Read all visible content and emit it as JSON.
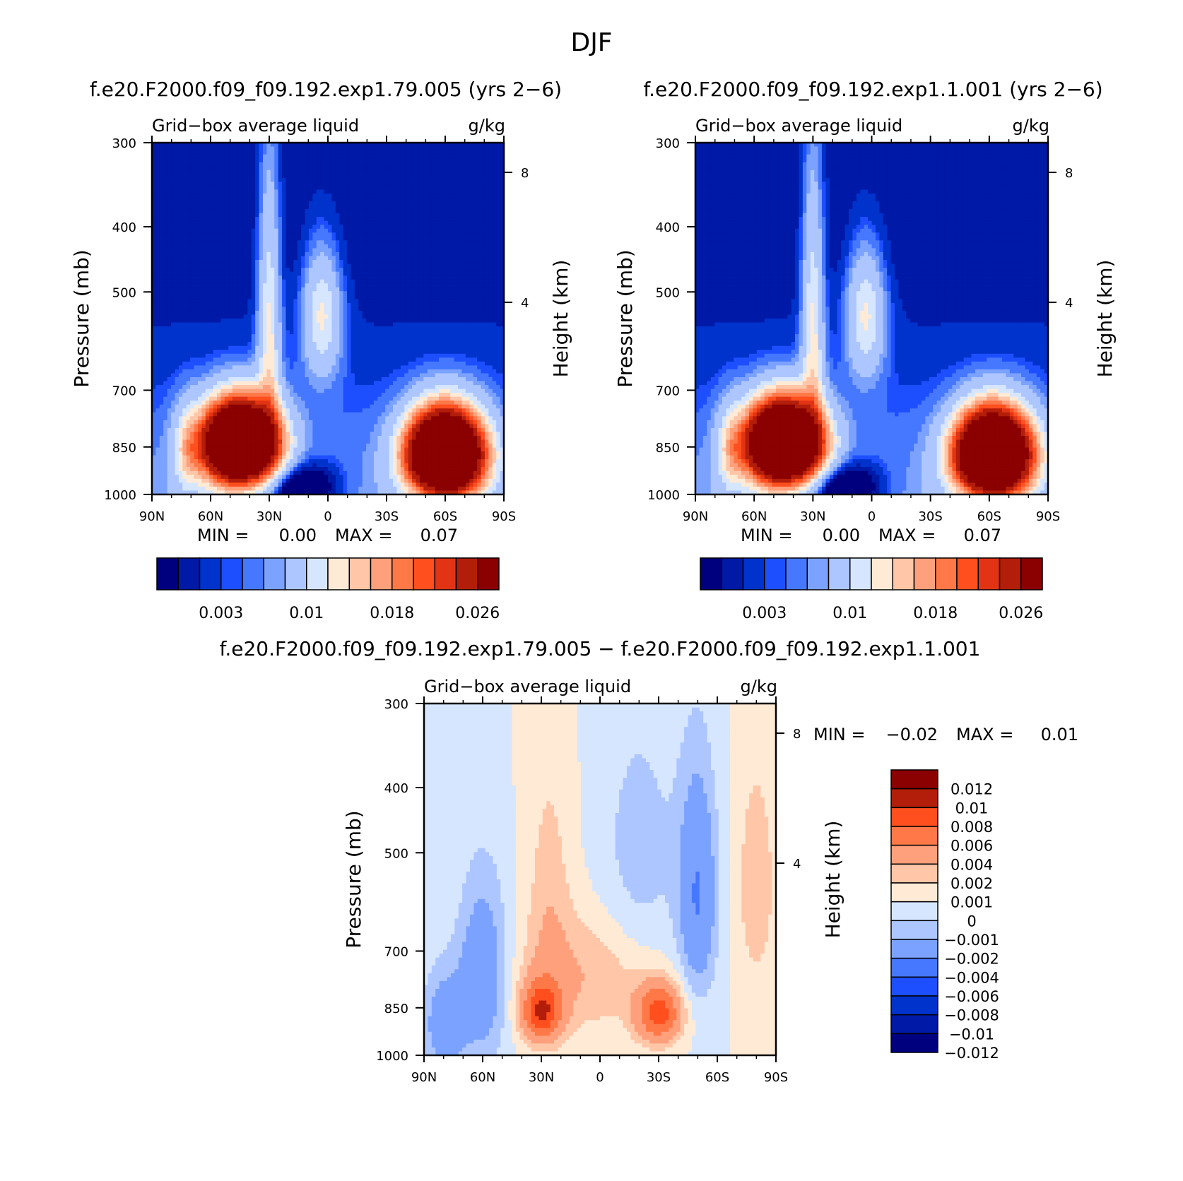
{
  "figure_title": "DJF",
  "colors": {
    "abs_levels": [
      "#00007f",
      "#0019a6",
      "#0032cc",
      "#1e4fff",
      "#4678ff",
      "#7ca2ff",
      "#adc6ff",
      "#d6e6ff",
      "#ffead6",
      "#ffc6a8",
      "#ffa07c",
      "#ff7848",
      "#ff4f1e",
      "#e23414",
      "#b21e0a",
      "#8b0000"
    ],
    "diff_levels": [
      "#00007f",
      "#0019a6",
      "#0032cc",
      "#1e4fff",
      "#4678ff",
      "#7ca2ff",
      "#adc6ff",
      "#d6e6ff",
      "#ffead6",
      "#ffc6a8",
      "#ffa07c",
      "#ff7848",
      "#ff4f1e",
      "#b21e0a",
      "#8b0000"
    ]
  },
  "chart_data": [
    {
      "type": "heatmap",
      "title": "f.e20.F2000.f09_f09.192.exp1.79.005 (yrs 2−6)",
      "subtitle_left": "Grid−box average liquid",
      "subtitle_right": "g/kg",
      "ylabel": "Pressure (mb)",
      "y2label": "Height (km)",
      "x_ticklabels": [
        "90N",
        "60N",
        "30N",
        "0",
        "30S",
        "60S",
        "90S"
      ],
      "y_ticklabels": [
        "300",
        "400",
        "500",
        "700",
        "850",
        "1000"
      ],
      "y2_ticklabels": [
        "8",
        "4"
      ],
      "ylim": [
        1000,
        300
      ],
      "min_label": "MIN =",
      "min_value": "0.00",
      "max_label": "MAX =",
      "max_value": "0.07",
      "colorbar_labels": [
        "0.003",
        "0.01",
        "0.018",
        "0.026"
      ],
      "features": [
        {
          "lat": 45,
          "p": 830,
          "value": 0.03
        },
        {
          "lat": -60,
          "p": 860,
          "value": 0.03
        },
        {
          "lat": 30,
          "p": 560,
          "value": 0.008
        },
        {
          "lat": 3,
          "p": 540,
          "value": 0.009
        }
      ]
    },
    {
      "type": "heatmap",
      "title": "f.e20.F2000.f09_f09.192.exp1.1.001 (yrs 2−6)",
      "subtitle_left": "Grid−box average liquid",
      "subtitle_right": "g/kg",
      "ylabel": "Pressure (mb)",
      "y2label": "Height (km)",
      "x_ticklabels": [
        "90N",
        "60N",
        "30N",
        "0",
        "30S",
        "60S",
        "90S"
      ],
      "y_ticklabels": [
        "300",
        "400",
        "500",
        "700",
        "850",
        "1000"
      ],
      "y2_ticklabels": [
        "8",
        "4"
      ],
      "ylim": [
        1000,
        300
      ],
      "min_label": "MIN =",
      "min_value": "0.00",
      "max_label": "MAX =",
      "max_value": "0.07",
      "colorbar_labels": [
        "0.003",
        "0.01",
        "0.018",
        "0.026"
      ],
      "features": [
        {
          "lat": 45,
          "p": 830,
          "value": 0.03
        },
        {
          "lat": -62,
          "p": 850,
          "value": 0.03
        },
        {
          "lat": 30,
          "p": 560,
          "value": 0.008
        },
        {
          "lat": 3,
          "p": 540,
          "value": 0.009
        }
      ]
    },
    {
      "type": "heatmap",
      "title": "f.e20.F2000.f09_f09.192.exp1.79.005 − f.e20.F2000.f09_f09.192.exp1.1.001",
      "subtitle_left": "Grid−box average liquid",
      "subtitle_right": "g/kg",
      "ylabel": "Pressure (mb)",
      "y2label": "Height (km)",
      "x_ticklabels": [
        "90N",
        "60N",
        "30N",
        "0",
        "30S",
        "60S",
        "90S"
      ],
      "y_ticklabels": [
        "300",
        "400",
        "500",
        "700",
        "850",
        "1000"
      ],
      "y2_ticklabels": [
        "8",
        "4"
      ],
      "ylim": [
        1000,
        300
      ],
      "min_label": "MIN =",
      "min_value": "−0.02",
      "max_label": "MAX =",
      "max_value": "0.01",
      "colorbar_labels": [
        "0.012",
        "0.01",
        "0.008",
        "0.006",
        "0.004",
        "0.002",
        "0.001",
        "0",
        "−0.001",
        "−0.002",
        "−0.004",
        "−0.006",
        "−0.008",
        "−0.01",
        "−0.012"
      ],
      "features": [
        {
          "lat": 30,
          "p": 850,
          "value": 0.007
        },
        {
          "lat": -30,
          "p": 860,
          "value": 0.007
        },
        {
          "lat": -50,
          "p": 560,
          "value": -0.004
        },
        {
          "lat": 60,
          "p": 750,
          "value": -0.003
        }
      ]
    }
  ]
}
